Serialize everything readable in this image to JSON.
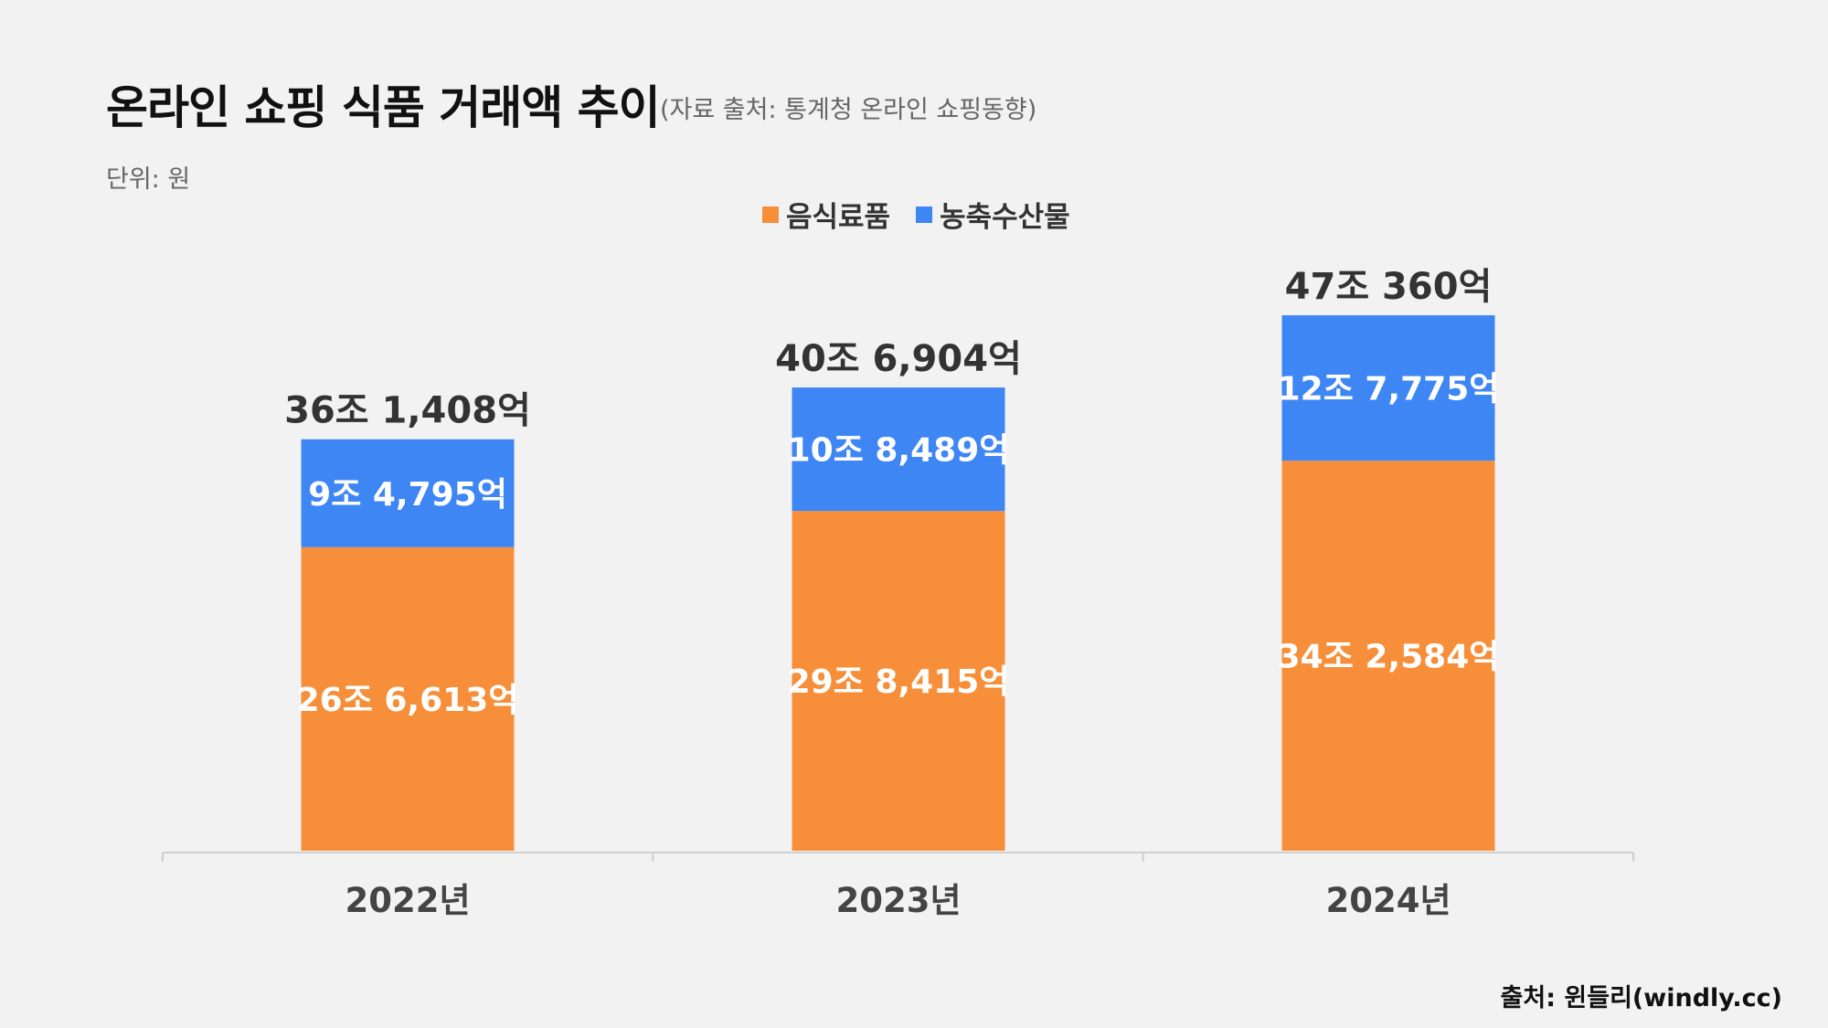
{
  "header": {
    "title": "온라인 쇼핑 식품 거래액 추이",
    "subtitle": "(자료 출처: 통계청 온라인 쇼핑동향)",
    "unit": "단위: 원"
  },
  "footer": {
    "source": "출처: 윈들리(windly.cc)"
  },
  "colors": {
    "food": "#f78f3a",
    "agri": "#3f86f5"
  },
  "chart_data": {
    "type": "bar",
    "stacked": true,
    "categories": [
      "2022년",
      "2023년",
      "2024년"
    ],
    "series": [
      {
        "name": "음식료품",
        "color": "#f78f3a",
        "values": [
          266613,
          298415,
          342584
        ],
        "labels": [
          "26조 6,613억",
          "29조 8,415억",
          "34조 2,584억"
        ]
      },
      {
        "name": "농축수산물",
        "color": "#3f86f5",
        "values": [
          94795,
          108489,
          127775
        ],
        "labels": [
          "9조 4,795억",
          "10조 8,489억",
          "12조 7,775억"
        ]
      }
    ],
    "totals": [
      361408,
      406904,
      470360
    ],
    "total_labels": [
      "36조 1,408억",
      "40조 6,904억",
      "47조 360억"
    ],
    "value_unit": "억원",
    "ylim": [
      0,
      470360
    ],
    "grid": false,
    "legend": "top-center"
  }
}
